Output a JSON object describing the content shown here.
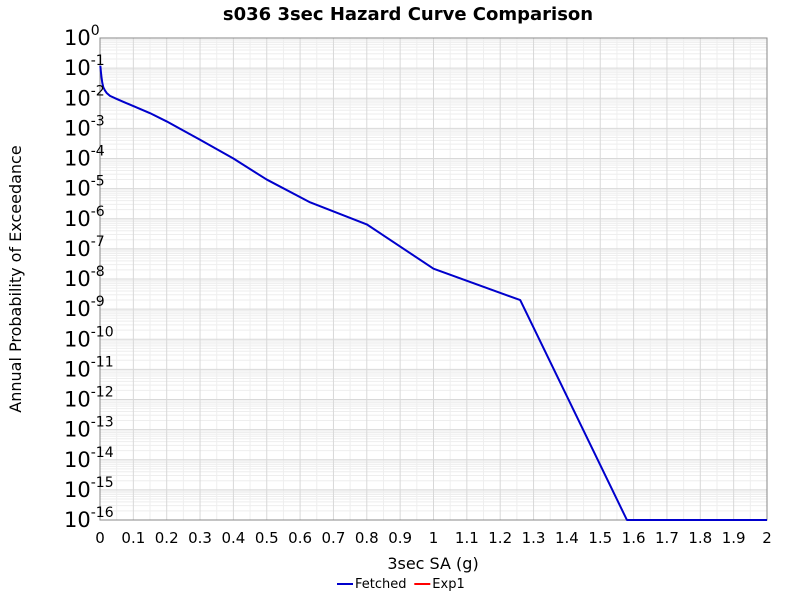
{
  "chart_data": {
    "type": "line",
    "title": "s036 3sec Hazard Curve Comparison",
    "xlabel": "3sec SA (g)",
    "ylabel": "Annual Probability of Exceedance",
    "xlim": [
      0,
      2
    ],
    "ylim": [
      1e-16,
      1
    ],
    "yscale": "log",
    "grid": true,
    "legend_position": "bottom-center",
    "x_ticks": [
      "0",
      "0.1",
      "0.2",
      "0.3",
      "0.4",
      "0.5",
      "0.6",
      "0.7",
      "0.8",
      "0.9",
      "1",
      "1.1",
      "1.2",
      "1.3",
      "1.4",
      "1.5",
      "1.6",
      "1.7",
      "1.8",
      "1.9",
      "2"
    ],
    "y_ticks": [
      {
        "value": 1,
        "base": "10",
        "exp": "0"
      },
      {
        "value": 0.1,
        "base": "10",
        "exp": "-1"
      },
      {
        "value": 0.01,
        "base": "10",
        "exp": "-2"
      },
      {
        "value": 0.001,
        "base": "10",
        "exp": "-3"
      },
      {
        "value": 0.0001,
        "base": "10",
        "exp": "-4"
      },
      {
        "value": 1e-05,
        "base": "10",
        "exp": "-5"
      },
      {
        "value": 1e-06,
        "base": "10",
        "exp": "-6"
      },
      {
        "value": 1e-07,
        "base": "10",
        "exp": "-7"
      },
      {
        "value": 1e-08,
        "base": "10",
        "exp": "-8"
      },
      {
        "value": 1e-09,
        "base": "10",
        "exp": "-9"
      },
      {
        "value": 1e-10,
        "base": "10",
        "exp": "-10"
      },
      {
        "value": 1e-11,
        "base": "10",
        "exp": "-11"
      },
      {
        "value": 1e-12,
        "base": "10",
        "exp": "-12"
      },
      {
        "value": 1e-13,
        "base": "10",
        "exp": "-13"
      },
      {
        "value": 1e-14,
        "base": "10",
        "exp": "-14"
      },
      {
        "value": 1e-15,
        "base": "10",
        "exp": "-15"
      },
      {
        "value": 1e-16,
        "base": "10",
        "exp": "-16"
      }
    ],
    "series": [
      {
        "name": "Fetched",
        "color": "#0000cc",
        "x": [
          0.001,
          0.003,
          0.005,
          0.007,
          0.01,
          0.015,
          0.02,
          0.03,
          0.05,
          0.075,
          0.1,
          0.15,
          0.2,
          0.3,
          0.4,
          0.5,
          0.63,
          0.8,
          1.0,
          1.26,
          1.58,
          2.0
        ],
        "y": [
          0.12,
          0.07,
          0.045,
          0.032,
          0.023,
          0.018,
          0.015,
          0.012,
          0.0095,
          0.0072,
          0.0055,
          0.0032,
          0.0017,
          0.00042,
          0.0001,
          2e-05,
          3.5e-06,
          6.5e-07,
          2.2e-08,
          2e-09,
          1e-16,
          1e-16
        ]
      },
      {
        "name": "Exp1",
        "color": "#ff0000",
        "x": [],
        "y": []
      }
    ]
  }
}
